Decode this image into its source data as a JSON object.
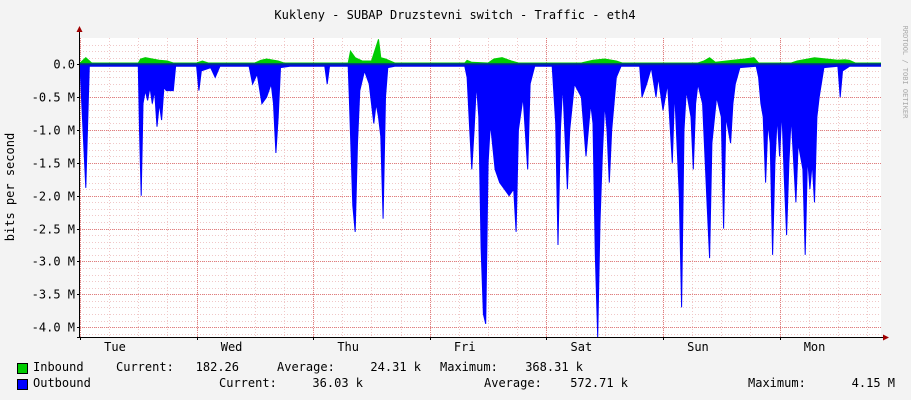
{
  "chart_data": {
    "type": "area",
    "title": "Kukleny - SUBAP Druzstevni switch - Traffic - eth4",
    "ylabel": "bits per second",
    "watermark": "RRDTOOL / TOBI OETIKER",
    "ylim": [
      -4.15,
      0.4
    ],
    "y_ticks": [
      {
        "value": 0.0,
        "label": "0.0"
      },
      {
        "value": -0.5,
        "label": "-0.5 M"
      },
      {
        "value": -1.0,
        "label": "-1.0 M"
      },
      {
        "value": -1.5,
        "label": "-1.5 M"
      },
      {
        "value": -2.0,
        "label": "-2.0 M"
      },
      {
        "value": -2.5,
        "label": "-2.5 M"
      },
      {
        "value": -3.0,
        "label": "-3.0 M"
      },
      {
        "value": -3.5,
        "label": "-3.5 M"
      },
      {
        "value": -4.0,
        "label": "-4.0 M"
      }
    ],
    "x_unit": "days",
    "xlim": [
      0,
      6.87
    ],
    "x_ticks": [
      {
        "value": 0.3,
        "label": "Tue"
      },
      {
        "value": 1.3,
        "label": "Wed"
      },
      {
        "value": 2.3,
        "label": "Thu"
      },
      {
        "value": 3.3,
        "label": "Fri"
      },
      {
        "value": 4.3,
        "label": "Sat"
      },
      {
        "value": 5.3,
        "label": "Sun"
      },
      {
        "value": 6.3,
        "label": "Mon"
      }
    ],
    "series": [
      {
        "name": "Inbound",
        "color": "#00cc00",
        "points": [
          [
            0.0,
            0.02
          ],
          [
            0.05,
            0.1
          ],
          [
            0.1,
            0.02
          ],
          [
            0.5,
            0.02
          ],
          [
            0.52,
            0.08
          ],
          [
            0.56,
            0.1
          ],
          [
            0.62,
            0.08
          ],
          [
            0.68,
            0.06
          ],
          [
            0.75,
            0.05
          ],
          [
            0.8,
            0.02
          ],
          [
            1.0,
            0.02
          ],
          [
            1.05,
            0.05
          ],
          [
            1.1,
            0.02
          ],
          [
            1.5,
            0.02
          ],
          [
            1.55,
            0.06
          ],
          [
            1.6,
            0.08
          ],
          [
            1.7,
            0.05
          ],
          [
            1.75,
            0.02
          ],
          [
            2.3,
            0.02
          ],
          [
            2.32,
            0.2
          ],
          [
            2.36,
            0.1
          ],
          [
            2.42,
            0.05
          ],
          [
            2.5,
            0.05
          ],
          [
            2.56,
            0.38
          ],
          [
            2.58,
            0.1
          ],
          [
            2.62,
            0.08
          ],
          [
            2.7,
            0.02
          ],
          [
            3.3,
            0.02
          ],
          [
            3.32,
            0.06
          ],
          [
            3.36,
            0.03
          ],
          [
            3.5,
            0.02
          ],
          [
            3.55,
            0.08
          ],
          [
            3.62,
            0.1
          ],
          [
            3.7,
            0.05
          ],
          [
            3.76,
            0.02
          ],
          [
            4.3,
            0.02
          ],
          [
            4.32,
            0.03
          ],
          [
            4.4,
            0.06
          ],
          [
            4.5,
            0.08
          ],
          [
            4.6,
            0.05
          ],
          [
            4.65,
            0.02
          ],
          [
            5.3,
            0.02
          ],
          [
            5.35,
            0.05
          ],
          [
            5.4,
            0.1
          ],
          [
            5.45,
            0.03
          ],
          [
            5.6,
            0.06
          ],
          [
            5.7,
            0.08
          ],
          [
            5.78,
            0.1
          ],
          [
            5.82,
            0.02
          ],
          [
            6.1,
            0.02
          ],
          [
            6.15,
            0.05
          ],
          [
            6.3,
            0.1
          ],
          [
            6.4,
            0.08
          ],
          [
            6.5,
            0.06
          ],
          [
            6.56,
            0.07
          ],
          [
            6.6,
            0.06
          ],
          [
            6.65,
            0.02
          ],
          [
            6.87,
            0.02
          ]
        ]
      },
      {
        "name": "Outbound",
        "color": "#0000ff",
        "points": [
          [
            0.0,
            -0.03
          ],
          [
            0.05,
            -1.88
          ],
          [
            0.08,
            -0.03
          ],
          [
            0.5,
            -0.03
          ],
          [
            0.51,
            -1.0
          ],
          [
            0.525,
            -2.0
          ],
          [
            0.54,
            -0.6
          ],
          [
            0.56,
            -0.4
          ],
          [
            0.58,
            -0.55
          ],
          [
            0.6,
            -0.35
          ],
          [
            0.62,
            -0.6
          ],
          [
            0.64,
            -0.4
          ],
          [
            0.66,
            -0.95
          ],
          [
            0.68,
            -0.6
          ],
          [
            0.7,
            -0.85
          ],
          [
            0.72,
            -0.35
          ],
          [
            0.74,
            -0.4
          ],
          [
            0.8,
            -0.4
          ],
          [
            0.82,
            -0.03
          ],
          [
            1.0,
            -0.03
          ],
          [
            1.02,
            -0.4
          ],
          [
            1.04,
            -0.1
          ],
          [
            1.12,
            -0.05
          ],
          [
            1.16,
            -0.2
          ],
          [
            1.2,
            -0.03
          ],
          [
            1.45,
            -0.03
          ],
          [
            1.48,
            -0.3
          ],
          [
            1.52,
            -0.15
          ],
          [
            1.56,
            -0.6
          ],
          [
            1.6,
            -0.5
          ],
          [
            1.64,
            -0.3
          ],
          [
            1.66,
            -0.6
          ],
          [
            1.68,
            -1.35
          ],
          [
            1.7,
            -0.8
          ],
          [
            1.72,
            -0.05
          ],
          [
            1.8,
            -0.03
          ],
          [
            2.1,
            -0.03
          ],
          [
            2.12,
            -0.3
          ],
          [
            2.14,
            -0.03
          ],
          [
            2.3,
            -0.03
          ],
          [
            2.31,
            -0.5
          ],
          [
            2.34,
            -2.15
          ],
          [
            2.36,
            -2.55
          ],
          [
            2.38,
            -1.2
          ],
          [
            2.4,
            -0.4
          ],
          [
            2.44,
            -0.1
          ],
          [
            2.48,
            -0.3
          ],
          [
            2.5,
            -0.6
          ],
          [
            2.52,
            -0.9
          ],
          [
            2.54,
            -0.6
          ],
          [
            2.56,
            -0.8
          ],
          [
            2.58,
            -1.1
          ],
          [
            2.6,
            -2.35
          ],
          [
            2.62,
            -0.5
          ],
          [
            2.64,
            -0.05
          ],
          [
            2.7,
            -0.03
          ],
          [
            3.3,
            -0.03
          ],
          [
            3.32,
            -0.2
          ],
          [
            3.34,
            -0.9
          ],
          [
            3.36,
            -1.6
          ],
          [
            3.38,
            -1.0
          ],
          [
            3.4,
            -0.3
          ],
          [
            3.42,
            -0.8
          ],
          [
            3.44,
            -2.8
          ],
          [
            3.46,
            -3.8
          ],
          [
            3.48,
            -3.95
          ],
          [
            3.5,
            -1.5
          ],
          [
            3.52,
            -0.9
          ],
          [
            3.56,
            -1.6
          ],
          [
            3.6,
            -1.8
          ],
          [
            3.64,
            -1.9
          ],
          [
            3.68,
            -2.0
          ],
          [
            3.72,
            -1.9
          ],
          [
            3.74,
            -2.55
          ],
          [
            3.76,
            -1.0
          ],
          [
            3.8,
            -0.5
          ],
          [
            3.84,
            -1.6
          ],
          [
            3.86,
            -0.3
          ],
          [
            3.9,
            -0.03
          ],
          [
            4.05,
            -0.03
          ],
          [
            4.08,
            -0.9
          ],
          [
            4.1,
            -2.75
          ],
          [
            4.12,
            -1.0
          ],
          [
            4.14,
            -0.3
          ],
          [
            4.18,
            -1.9
          ],
          [
            4.2,
            -1.0
          ],
          [
            4.24,
            -0.3
          ],
          [
            4.3,
            -0.5
          ],
          [
            4.34,
            -1.4
          ],
          [
            4.38,
            -0.6
          ],
          [
            4.4,
            -0.9
          ],
          [
            4.42,
            -2.9
          ],
          [
            4.44,
            -4.15
          ],
          [
            4.46,
            -2.4
          ],
          [
            4.48,
            -1.4
          ],
          [
            4.5,
            -0.6
          ],
          [
            4.52,
            -1.0
          ],
          [
            4.54,
            -1.8
          ],
          [
            4.56,
            -1.0
          ],
          [
            4.6,
            -0.2
          ],
          [
            4.64,
            -0.03
          ],
          [
            4.8,
            -0.03
          ],
          [
            4.82,
            -0.5
          ],
          [
            4.86,
            -0.3
          ],
          [
            4.9,
            -0.05
          ],
          [
            4.94,
            -0.5
          ],
          [
            4.96,
            -0.2
          ],
          [
            5.0,
            -0.7
          ],
          [
            5.04,
            -0.3
          ],
          [
            5.08,
            -1.5
          ],
          [
            5.1,
            -0.4
          ],
          [
            5.14,
            -2.0
          ],
          [
            5.16,
            -3.7
          ],
          [
            5.18,
            -1.0
          ],
          [
            5.2,
            -0.4
          ],
          [
            5.24,
            -0.8
          ],
          [
            5.26,
            -1.6
          ],
          [
            5.28,
            -0.6
          ],
          [
            5.3,
            -0.3
          ],
          [
            5.34,
            -0.6
          ],
          [
            5.38,
            -2.2
          ],
          [
            5.4,
            -2.95
          ],
          [
            5.42,
            -1.2
          ],
          [
            5.46,
            -0.5
          ],
          [
            5.5,
            -0.8
          ],
          [
            5.52,
            -2.5
          ],
          [
            5.54,
            -0.8
          ],
          [
            5.58,
            -1.2
          ],
          [
            5.6,
            -0.6
          ],
          [
            5.62,
            -0.3
          ],
          [
            5.66,
            -0.05
          ],
          [
            5.8,
            -0.03
          ],
          [
            5.82,
            -0.2
          ],
          [
            5.84,
            -0.6
          ],
          [
            5.86,
            -0.8
          ],
          [
            5.88,
            -1.8
          ],
          [
            5.9,
            -0.9
          ],
          [
            5.92,
            -1.2
          ],
          [
            5.94,
            -2.9
          ],
          [
            5.96,
            -1.5
          ],
          [
            5.98,
            -0.8
          ],
          [
            6.0,
            -1.4
          ],
          [
            6.02,
            -0.7
          ],
          [
            6.04,
            -1.7
          ],
          [
            6.06,
            -2.6
          ],
          [
            6.08,
            -1.5
          ],
          [
            6.1,
            -0.8
          ],
          [
            6.14,
            -2.1
          ],
          [
            6.16,
            -1.2
          ],
          [
            6.2,
            -1.6
          ],
          [
            6.22,
            -2.9
          ],
          [
            6.24,
            -1.4
          ],
          [
            6.26,
            -1.9
          ],
          [
            6.28,
            -1.5
          ],
          [
            6.3,
            -2.1
          ],
          [
            6.32,
            -0.8
          ],
          [
            6.34,
            -0.5
          ],
          [
            6.38,
            -0.05
          ],
          [
            6.5,
            -0.03
          ],
          [
            6.52,
            -0.5
          ],
          [
            6.54,
            -0.1
          ],
          [
            6.6,
            -0.03
          ],
          [
            6.87,
            -0.03
          ]
        ]
      }
    ],
    "legend": [
      {
        "name": "Inbound",
        "color": "#00cc00",
        "current_label": "Current:",
        "current": "182.26",
        "average_label": "Average:",
        "average": "24.31 k",
        "maximum_label": "Maximum:",
        "maximum": "368.31 k"
      },
      {
        "name": "Outbound",
        "color": "#0000ff",
        "current_label": "Current:",
        "current": "36.03 k",
        "average_label": "Average:",
        "average": "572.71 k",
        "maximum_label": "Maximum:",
        "maximum": "4.15 M"
      }
    ]
  }
}
